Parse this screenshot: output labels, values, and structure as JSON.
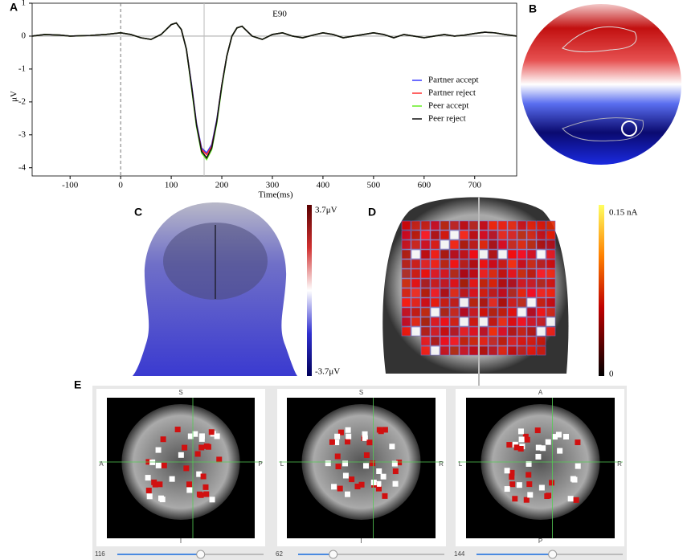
{
  "chart_data": {
    "type": "line",
    "title": "E90",
    "xlabel": "Time(ms)",
    "ylabel": "μV",
    "x": [
      -175,
      -150,
      -120,
      -100,
      -60,
      -30,
      0,
      20,
      40,
      60,
      80,
      100,
      110,
      120,
      130,
      140,
      150,
      160,
      170,
      180,
      190,
      200,
      210,
      220,
      230,
      240,
      250,
      260,
      280,
      300,
      320,
      340,
      360,
      380,
      400,
      420,
      440,
      460,
      480,
      500,
      520,
      540,
      560,
      580,
      600,
      620,
      640,
      660,
      680,
      700,
      720,
      740,
      760,
      783
    ],
    "series": [
      {
        "name": "Partner accept",
        "color": "#3a3aff",
        "values": [
          0,
          0.05,
          0.03,
          0,
          0.02,
          0.05,
          0.1,
          0.05,
          -0.05,
          -0.1,
          0.05,
          0.35,
          0.4,
          0.2,
          -0.4,
          -1.45,
          -2.65,
          -3.4,
          -3.55,
          -3.3,
          -2.55,
          -1.5,
          -0.6,
          0,
          0.25,
          0.3,
          0.15,
          0,
          -0.1,
          0.05,
          0.1,
          0,
          -0.05,
          0.03,
          0.1,
          0.05,
          -0.05,
          0,
          0.05,
          0.1,
          0.05,
          -0.05,
          0.05,
          0,
          -0.05,
          0,
          0.05,
          0,
          0.03,
          0.08,
          0.12,
          0.1,
          0.05,
          0
        ]
      },
      {
        "name": "Partner reject",
        "color": "#ff3030",
        "values": [
          0,
          0.05,
          0.03,
          0,
          0.02,
          0.05,
          0.1,
          0.05,
          -0.05,
          -0.1,
          0.05,
          0.35,
          0.4,
          0.2,
          -0.4,
          -1.5,
          -2.7,
          -3.45,
          -3.6,
          -3.35,
          -2.6,
          -1.5,
          -0.6,
          0,
          0.25,
          0.3,
          0.15,
          0,
          -0.1,
          0.05,
          0.1,
          0,
          -0.05,
          0.03,
          0.1,
          0.05,
          -0.05,
          0,
          0.05,
          0.1,
          0.05,
          -0.05,
          0.05,
          0,
          -0.05,
          0,
          0.05,
          0,
          0.03,
          0.08,
          0.12,
          0.1,
          0.05,
          0
        ]
      },
      {
        "name": "Peer accept",
        "color": "#66ee22",
        "values": [
          0,
          0.05,
          0.03,
          0,
          0.02,
          0.05,
          0.1,
          0.05,
          -0.05,
          -0.1,
          0.05,
          0.35,
          0.4,
          0.2,
          -0.4,
          -1.55,
          -2.75,
          -3.55,
          -3.75,
          -3.45,
          -2.65,
          -1.55,
          -0.6,
          0,
          0.25,
          0.3,
          0.15,
          0,
          -0.1,
          0.05,
          0.1,
          0,
          -0.05,
          0.03,
          0.1,
          0.05,
          -0.05,
          0,
          0.05,
          0.1,
          0.05,
          -0.05,
          0.05,
          0,
          -0.05,
          0,
          0.05,
          0,
          0.03,
          0.08,
          0.12,
          0.1,
          0.05,
          0
        ]
      },
      {
        "name": "Peer reject",
        "color": "#111111",
        "values": [
          0,
          0.05,
          0.03,
          0,
          0.02,
          0.05,
          0.1,
          0.05,
          -0.05,
          -0.1,
          0.05,
          0.35,
          0.4,
          0.2,
          -0.4,
          -1.5,
          -2.7,
          -3.5,
          -3.7,
          -3.4,
          -2.6,
          -1.5,
          -0.6,
          0,
          0.25,
          0.3,
          0.15,
          0,
          -0.1,
          0.05,
          0.1,
          0,
          -0.05,
          0.03,
          0.1,
          0.05,
          -0.05,
          0,
          0.05,
          0.1,
          0.05,
          -0.05,
          0.05,
          0,
          -0.05,
          0,
          0.05,
          0,
          0.03,
          0.08,
          0.12,
          0.1,
          0.05,
          0
        ]
      }
    ],
    "xlim": [
      -175,
      783
    ],
    "ylim": [
      -4.25,
      1
    ],
    "xticks": [
      -100,
      0,
      100,
      200,
      300,
      400,
      500,
      600,
      700
    ],
    "yticks": [
      1,
      0,
      -1,
      -2,
      -3,
      -4
    ],
    "vlines": [
      0,
      165
    ],
    "legend": "right"
  },
  "figure": {
    "panel_labels": [
      "A",
      "B",
      "C",
      "D",
      "E"
    ],
    "c_colorbar": [
      "3.7μV",
      "-3.7μV"
    ],
    "d_colorbar": [
      "0.15 nA",
      "0"
    ],
    "e_views": [
      {
        "top": "S",
        "left": "A",
        "right": "P",
        "bottom": "I",
        "slider": 116
      },
      {
        "top": "S",
        "left": "L",
        "right": "R",
        "bottom": "I",
        "slider": 62
      },
      {
        "top": "A",
        "left": "L",
        "right": "R",
        "bottom": "P",
        "slider": 144
      }
    ]
  }
}
